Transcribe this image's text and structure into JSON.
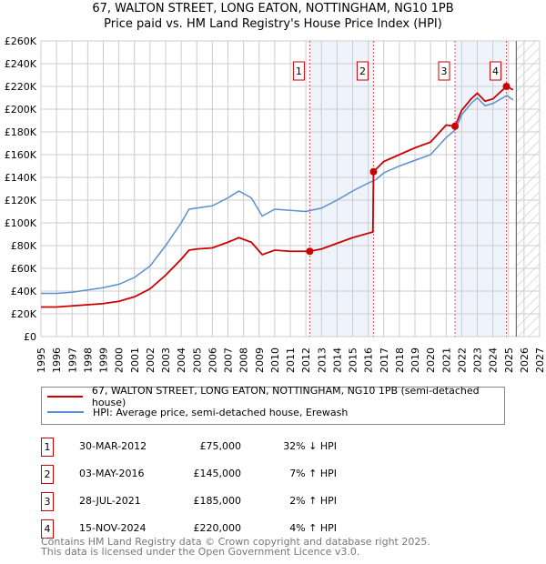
{
  "chart_data": {
    "type": "line",
    "title": "67, WALTON STREET, LONG EATON, NOTTINGHAM, NG10 1PB",
    "subtitle": "Price paid vs. HM Land Registry's House Price Index (HPI)",
    "xlim": [
      1995,
      2027
    ],
    "ylim": [
      0,
      260000
    ],
    "y_ticks": [
      0,
      20000,
      40000,
      60000,
      80000,
      100000,
      120000,
      140000,
      160000,
      180000,
      200000,
      220000,
      240000,
      260000
    ],
    "y_tick_labels": [
      "£0",
      "£20K",
      "£40K",
      "£60K",
      "£80K",
      "£100K",
      "£120K",
      "£140K",
      "£160K",
      "£180K",
      "£200K",
      "£220K",
      "£240K",
      "£260K"
    ],
    "x_ticks": [
      "1995",
      "1996",
      "1997",
      "1998",
      "1999",
      "2000",
      "2001",
      "2002",
      "2003",
      "2004",
      "2005",
      "2006",
      "2007",
      "2008",
      "2009",
      "2010",
      "2011",
      "2012",
      "2013",
      "2014",
      "2015",
      "2016",
      "2017",
      "2018",
      "2019",
      "2020",
      "2021",
      "2022",
      "2023",
      "2024",
      "2025",
      "2026",
      "2027"
    ],
    "grid": true,
    "forecast_from": 2025.5,
    "shaded_ranges": [
      [
        2012.25,
        2016.34
      ],
      [
        2021.57,
        2024.87
      ]
    ],
    "series": [
      {
        "name": "67, WALTON STREET, LONG EATON, NOTTINGHAM, NG10 1PB (semi-detached house)",
        "color": "#cc0000",
        "x": [
          1995,
          1996,
          1997,
          1998,
          1999,
          2000,
          2001,
          2002,
          2003,
          2004,
          2004.5,
          2005,
          2006,
          2007,
          2007.7,
          2008.5,
          2009.2,
          2010,
          2011,
          2012.25,
          2013,
          2014,
          2015,
          2016.3,
          2016.34,
          2017,
          2018,
          2019,
          2020,
          2021,
          2021.57,
          2022,
          2022.6,
          2023,
          2023.5,
          2024,
          2024.87,
          2025.3
        ],
        "y": [
          26000,
          26000,
          27000,
          28000,
          29000,
          31000,
          35000,
          42000,
          54000,
          68000,
          76000,
          77000,
          78000,
          83000,
          87000,
          83000,
          72000,
          76000,
          75000,
          75000,
          77000,
          82000,
          87000,
          92000,
          145000,
          154000,
          160000,
          166000,
          171000,
          186000,
          185000,
          199000,
          209000,
          214000,
          207000,
          209000,
          220000,
          217000
        ]
      },
      {
        "name": "HPI: Average price, semi-detached house, Erewash",
        "color": "#5b8fd4",
        "x": [
          1995,
          1996,
          1997,
          1998,
          1999,
          2000,
          2001,
          2002,
          2003,
          2004,
          2004.5,
          2005,
          2006,
          2007,
          2007.7,
          2008.5,
          2009.2,
          2010,
          2011,
          2012,
          2013,
          2014,
          2015,
          2016,
          2016.5,
          2017,
          2018,
          2019,
          2020,
          2021,
          2021.6,
          2022,
          2022.6,
          2023,
          2023.5,
          2024,
          2024.9,
          2025.3
        ],
        "y": [
          38000,
          38000,
          39000,
          41000,
          43000,
          46000,
          52000,
          62000,
          80000,
          100000,
          112000,
          113000,
          115000,
          122000,
          128000,
          122000,
          106000,
          112000,
          111000,
          110000,
          113000,
          120000,
          128000,
          135000,
          138000,
          144000,
          150000,
          155000,
          160000,
          175000,
          182000,
          195000,
          205000,
          210000,
          203000,
          205000,
          212000,
          208000
        ]
      }
    ],
    "sales": [
      {
        "label": "1",
        "x": 2012.25,
        "price": 75000,
        "date": "30-MAR-2012",
        "price_text": "£75,000",
        "hpi_text": "32% ↓ HPI"
      },
      {
        "label": "2",
        "x": 2016.34,
        "price": 145000,
        "date": "03-MAY-2016",
        "price_text": "£145,000",
        "hpi_text": "7% ↑ HPI"
      },
      {
        "label": "3",
        "x": 2021.57,
        "price": 185000,
        "date": "28-JUL-2021",
        "price_text": "£185,000",
        "hpi_text": "2% ↑ HPI"
      },
      {
        "label": "4",
        "x": 2024.87,
        "price": 220000,
        "date": "15-NOV-2024",
        "price_text": "£220,000",
        "hpi_text": "4% ↑ HPI"
      }
    ]
  },
  "footer": [
    "Contains HM Land Registry data © Crown copyright and database right 2025.",
    "This data is licensed under the Open Government Licence v3.0."
  ]
}
